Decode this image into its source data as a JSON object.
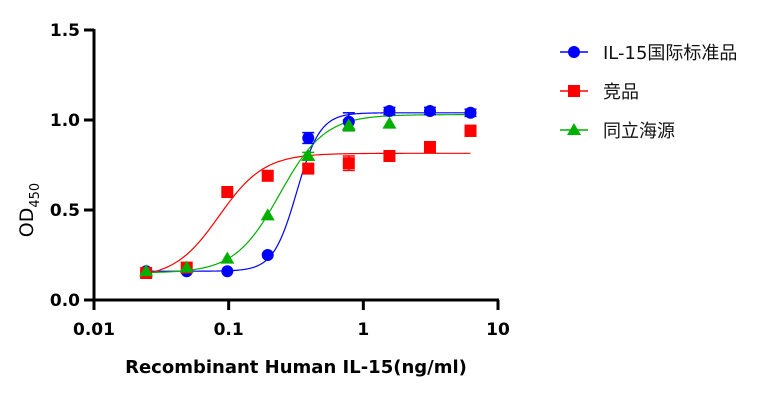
{
  "chart_data": {
    "type": "scatter",
    "title": "",
    "xlabel": "Recombinant Human IL-15(ng/ml)",
    "ylabel_main": "OD",
    "ylabel_sub": "450",
    "xscale": "log",
    "xlim": [
      0.01,
      10
    ],
    "ylim": [
      0,
      1.5
    ],
    "xticks": [
      0.01,
      0.1,
      1,
      10
    ],
    "xtick_labels": [
      "0.01",
      "0.1",
      "1",
      "10"
    ],
    "yticks": [
      0,
      0.5,
      1.0,
      1.5
    ],
    "ytick_labels": [
      "0.0",
      "0.5",
      "1.0",
      "1.5"
    ],
    "grid": false,
    "legend_position": "top-right",
    "x": [
      0.0244,
      0.0488,
      0.0977,
      0.195,
      0.39,
      0.78,
      1.5625,
      3.125,
      6.25
    ],
    "series": [
      {
        "name": "IL-15国际标准品",
        "color": "#0000ff",
        "marker": "circle",
        "values": [
          0.16,
          0.16,
          0.16,
          0.25,
          0.9,
          0.99,
          1.05,
          1.05,
          1.04
        ],
        "errors": [
          0,
          0,
          0,
          0,
          0.03,
          0.05,
          0.02,
          0.02,
          0.02
        ],
        "fit": {
          "bottom": 0.16,
          "top": 1.04,
          "ec50": 0.32,
          "hill": 5.0
        }
      },
      {
        "name": "竞品",
        "color": "#ff0000",
        "marker": "square",
        "values": [
          0.15,
          0.18,
          0.6,
          0.69,
          0.73,
          0.76,
          0.8,
          0.85,
          0.94
        ],
        "errors": [
          0,
          0,
          0,
          0,
          0.02,
          0.04,
          0,
          0,
          0.03
        ],
        "fit": {
          "bottom": 0.12,
          "top": 0.815,
          "ec50": 0.085,
          "hill": 2.6
        }
      },
      {
        "name": "同立海源",
        "color": "#00b000",
        "marker": "triangle",
        "values": [
          0.16,
          0.18,
          0.23,
          0.47,
          0.8,
          0.97,
          0.98,
          null,
          null
        ],
        "errors": [
          0,
          0,
          0,
          0,
          0.02,
          0.03,
          0,
          0,
          0
        ],
        "fit": {
          "bottom": 0.15,
          "top": 1.03,
          "ec50": 0.24,
          "hill": 2.6
        }
      }
    ]
  }
}
